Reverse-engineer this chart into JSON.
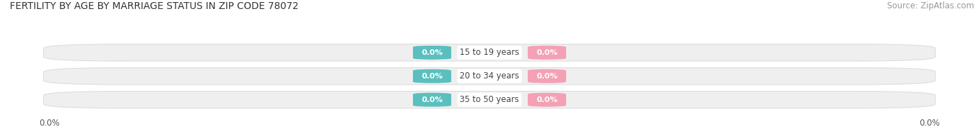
{
  "title": "FERTILITY BY AGE BY MARRIAGE STATUS IN ZIP CODE 78072",
  "source": "Source: ZipAtlas.com",
  "categories": [
    "15 to 19 years",
    "20 to 34 years",
    "35 to 50 years"
  ],
  "married_values": [
    0.0,
    0.0,
    0.0
  ],
  "unmarried_values": [
    0.0,
    0.0,
    0.0
  ],
  "married_color": "#5BBFBF",
  "unmarried_color": "#F4A0B5",
  "bar_bg_color": "#EFEFEF",
  "bar_border_color": "#DDDDDD",
  "title_fontsize": 10,
  "source_fontsize": 8.5,
  "label_fontsize": 8,
  "cat_fontsize": 8.5,
  "legend_fontsize": 9,
  "axis_label_fontsize": 8.5,
  "background_color": "#FFFFFF",
  "x_left_label": "0.0%",
  "x_right_label": "0.0%"
}
